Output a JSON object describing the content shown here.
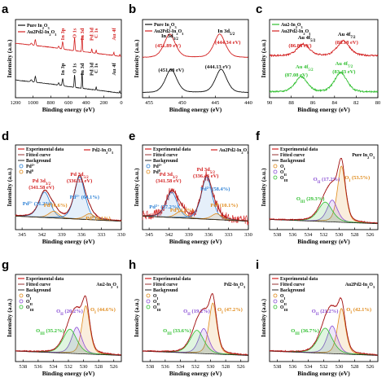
{
  "chart_data": [
    {
      "panel": "a",
      "type": "line",
      "xlabel": "Binding energy (eV)",
      "ylabel": "Intensity (a.u.)",
      "xlim": [
        1200,
        0
      ],
      "xticks": [
        1200,
        1000,
        800,
        600,
        400,
        200,
        0
      ],
      "legend": [
        "Pure In2O3",
        "Au2Pd2-In2O3"
      ],
      "legend_sub": [
        {
          "pre": "Pure In",
          "sub1": "2",
          "mid": "O",
          "sub2": "3"
        },
        {
          "pre": "Au2Pd2-In",
          "sub1": "2",
          "mid": "O",
          "sub2": "3"
        }
      ],
      "series": [
        {
          "name": "Au2Pd2-In2O3",
          "color": "#d32020",
          "offset": 0.52,
          "baseline": [
            [
              1200,
              0.42
            ],
            [
              1000,
              0.36
            ],
            [
              800,
              0.3
            ],
            [
              600,
              0.22
            ],
            [
              450,
              0.17
            ],
            [
              0,
              0.02
            ]
          ],
          "peaks": [
            [
              1020,
              0.06,
              8
            ],
            [
              975,
              0.18,
              6
            ],
            [
              710,
              0.07,
              6
            ],
            [
              665,
              0.22,
              6
            ],
            [
              530,
              0.38,
              5
            ],
            [
              445,
              0.5,
              4
            ],
            [
              335,
              0.12,
              4
            ],
            [
              285,
              0.1,
              4
            ],
            [
              85,
              0.1,
              4
            ],
            [
              18,
              0.06,
              3
            ]
          ]
        },
        {
          "name": "Pure In2O3",
          "color": "#111111",
          "offset": 0.05,
          "baseline": [
            [
              1200,
              0.42
            ],
            [
              1000,
              0.36
            ],
            [
              800,
              0.3
            ],
            [
              600,
              0.22
            ],
            [
              450,
              0.17
            ],
            [
              0,
              0.02
            ]
          ],
          "peaks": [
            [
              1020,
              0.06,
              8
            ],
            [
              975,
              0.18,
              6
            ],
            [
              710,
              0.07,
              6
            ],
            [
              665,
              0.22,
              6
            ],
            [
              530,
              0.38,
              5
            ],
            [
              445,
              0.5,
              4
            ],
            [
              285,
              0.1,
              4
            ],
            [
              18,
              0.06,
              3
            ]
          ]
        }
      ],
      "annotations": [
        {
          "text": "In 3p",
          "x": 665,
          "color": "#d32020"
        },
        {
          "text": "O 1s",
          "x": 530,
          "color": "#d32020"
        },
        {
          "text": "In 3d",
          "x": 445,
          "color": "#d32020"
        },
        {
          "text": "Pd 3d",
          "x": 335,
          "color": "#d32020"
        },
        {
          "text": "C 1s",
          "x": 285,
          "color": "#d32020"
        },
        {
          "text": "Au 4f",
          "x": 85,
          "color": "#d32020"
        },
        {
          "text": "In 3p",
          "x": 665,
          "color": "#111111"
        },
        {
          "text": "O 1s",
          "x": 530,
          "color": "#111111"
        },
        {
          "text": "In 3d",
          "x": 445,
          "color": "#111111"
        },
        {
          "text": "Pd 3d",
          "x": 335,
          "color": "#111111"
        },
        {
          "text": "C 1s",
          "x": 285,
          "color": "#111111"
        },
        {
          "text": "Au 4f",
          "x": 85,
          "color": "#111111"
        }
      ]
    },
    {
      "panel": "b",
      "type": "line",
      "xlabel": "Binding energy (eV)",
      "ylabel": "Intensity (a.u.)",
      "xlim": [
        456,
        440
      ],
      "xticks": [
        455,
        450,
        445,
        440
      ],
      "legend": [
        "Pure In2O3",
        "Au2Pd2-In2O3"
      ],
      "legend_sub": [
        {
          "pre": "Pure In",
          "sub1": "2",
          "mid": "O",
          "sub2": "3"
        },
        {
          "pre": "Au2Pd2-In",
          "sub1": "2",
          "mid": "O",
          "sub2": "3"
        }
      ],
      "series": [
        {
          "name": "Au2Pd2-In2O3",
          "color": "#d32020",
          "peaks": [
            [
              451.89,
              1.0
            ],
            [
              444.34,
              1.0
            ]
          ]
        },
        {
          "name": "Pure In2O3",
          "color": "#111111",
          "peaks": [
            [
              451.68,
              1.0
            ],
            [
              444.13,
              1.0
            ]
          ]
        }
      ],
      "peak_labels": [
        "In 3d3/2",
        "In 3d5/2"
      ],
      "annotations": [
        {
          "text": "(451.89 eV)",
          "x": 451.89,
          "color": "#d32020"
        },
        {
          "text": "(444.34 eV)",
          "x": 444.34,
          "color": "#d32020"
        },
        {
          "text": "(451.68 eV)",
          "x": 451.68,
          "color": "#111111"
        },
        {
          "text": "(444.13 eV)",
          "x": 444.13,
          "color": "#111111"
        }
      ]
    },
    {
      "panel": "c",
      "type": "line",
      "xlabel": "Binding energy (eV)",
      "ylabel": "Intensity (a.u.)",
      "xlim": [
        90,
        80
      ],
      "xticks": [
        90,
        88,
        86,
        84,
        82,
        80
      ],
      "legend": [
        "Au2-In2O3",
        "Au2Pd2-In2O3"
      ],
      "legend_sub": [
        {
          "pre": "Au2-In",
          "sub1": "2",
          "mid": "O",
          "sub2": "3"
        },
        {
          "pre": "Au2Pd2-In",
          "sub1": "2",
          "mid": "O",
          "sub2": "3"
        }
      ],
      "series": [
        {
          "name": "Au2Pd2-In2O3",
          "color": "#d32020",
          "peaks": [
            [
              86.88,
              0.35
            ],
            [
              83.18,
              0.45
            ]
          ]
        },
        {
          "name": "Au2-In2O3",
          "color": "#2fbf2f",
          "peaks": [
            [
              87.08,
              0.35
            ],
            [
              83.43,
              0.45
            ]
          ]
        }
      ],
      "peak_labels": [
        "Au 4f5/2",
        "Au 4f7/2"
      ],
      "annotations": [
        {
          "text": "(86.88 eV)",
          "x": 86.88,
          "color": "#d32020"
        },
        {
          "text": "(83.18 eV)",
          "x": 83.18,
          "color": "#d32020"
        },
        {
          "text": "(87.08 eV)",
          "x": 87.08,
          "color": "#2fbf2f"
        },
        {
          "text": "(83.43 eV)",
          "x": 83.43,
          "color": "#2fbf2f"
        }
      ]
    },
    {
      "panel": "d",
      "type": "line",
      "xlabel": "Binding energy (eV)",
      "ylabel": "Intensity (a.u.)",
      "xlim": [
        346,
        330
      ],
      "xticks": [
        345,
        342,
        339,
        336,
        333,
        330
      ],
      "sample_label": "Pd2-In2O3",
      "legend": [
        "Experimental data",
        "Fitted curve",
        "Background",
        "Pd2+",
        "Pd0"
      ],
      "annotations": [
        {
          "text": "Pd 3d3/2",
          "x": 341.58,
          "color": "#d32020"
        },
        {
          "text": "(341.58 eV)",
          "x": 341.58,
          "color": "#d32020"
        },
        {
          "text": "Pd 3d5/2",
          "x": 336.33,
          "color": "#d32020"
        },
        {
          "text": "(336.33 eV)",
          "x": 336.33,
          "color": "#d32020"
        },
        {
          "text": "Pd2+ (31.2%)",
          "x": 342.2,
          "color": "#2a7fd4"
        },
        {
          "text": "Pd0(6.6%)",
          "x": 340.2,
          "color": "#e08a1a"
        },
        {
          "text": "Pd2+ (64.1%)",
          "x": 336.3,
          "color": "#2a7fd4"
        },
        {
          "text": "Pd0 (3.1%)",
          "x": 334.5,
          "color": "#e08a1a"
        }
      ]
    },
    {
      "panel": "e",
      "type": "line",
      "xlabel": "Binding energy (eV)",
      "ylabel": "Intensity (a.u.)",
      "xlim": [
        346,
        330
      ],
      "xticks": [
        345,
        342,
        339,
        336,
        333,
        330
      ],
      "sample_label": "Au2Pd2-In2O3",
      "legend": [
        "Experimental data",
        "Fitted curve",
        "Background",
        "Pd2+",
        "Pd0"
      ],
      "annotations": [
        {
          "text": "Pd 3d3/2",
          "x": 341.58,
          "color": "#d32020"
        },
        {
          "text": "(341.58 eV)",
          "x": 341.58,
          "color": "#d32020"
        },
        {
          "text": "Pd 3d5/2",
          "x": 336.43,
          "color": "#d32020"
        },
        {
          "text": "(336.43 eV)",
          "x": 336.43,
          "color": "#d32020"
        },
        {
          "text": "Pd2+ (27.2%)",
          "x": 342.5,
          "color": "#2a7fd4"
        },
        {
          "text": "Pd0(4.3%)",
          "x": 340.3,
          "color": "#e08a1a"
        },
        {
          "text": "Pd2+ (58.4%)",
          "x": 336.0,
          "color": "#2a7fd4"
        },
        {
          "text": "Pd0 (10.1%)",
          "x": 334.4,
          "color": "#e08a1a"
        }
      ]
    },
    {
      "panel": "f",
      "type": "line",
      "xlabel": "Binding energy (eV)",
      "ylabel": "Intensity (a.u.)",
      "xlim": [
        539,
        525
      ],
      "xticks": [
        538,
        536,
        534,
        532,
        530,
        528,
        526
      ],
      "sample_label": "Pure In2O3",
      "legend": [
        "Experimental data",
        "Fitted curve",
        "Background",
        "OI",
        "OII",
        "OIII"
      ],
      "components": [
        {
          "name": "OI",
          "center": 529.7,
          "color": "#e08a1a"
        },
        {
          "name": "OII",
          "center": 530.9,
          "color": "#8a4fd4"
        },
        {
          "name": "OIII",
          "center": 531.9,
          "color": "#2fbf2f"
        }
      ],
      "annotations": [
        {
          "text": "OII (17.2%)",
          "x": 531.0,
          "color": "#8a4fd4"
        },
        {
          "text": "OI (53.5%)",
          "x": 528.5,
          "color": "#e08a1a"
        },
        {
          "text": "OIII (29.3%)",
          "x": 533.3,
          "color": "#2fbf2f"
        }
      ],
      "fractions": {
        "OI": 53.5,
        "OII": 17.2,
        "OIII": 29.3
      }
    },
    {
      "panel": "g",
      "type": "line",
      "xlabel": "Binding energy (eV)",
      "ylabel": "Intensity (a.u.)",
      "xlim": [
        539,
        525
      ],
      "xticks": [
        538,
        536,
        534,
        532,
        530,
        528,
        526
      ],
      "sample_label": "Au2-In2O3",
      "legend": [
        "Experimental data",
        "Fitted curve",
        "Background",
        "OI",
        "OII",
        "OIII"
      ],
      "components": [
        {
          "name": "OI",
          "center": 529.7,
          "color": "#e08a1a"
        },
        {
          "name": "OII",
          "center": 530.9,
          "color": "#8a4fd4"
        },
        {
          "name": "OIII",
          "center": 531.9,
          "color": "#2fbf2f"
        }
      ],
      "annotations": [
        {
          "text": "OII (20.2%)",
          "x": 531.2,
          "color": "#8a4fd4"
        },
        {
          "text": "OI (44.6%)",
          "x": 528.3,
          "color": "#e08a1a"
        },
        {
          "text": "OIII (35.2%)",
          "x": 534.0,
          "color": "#2fbf2f"
        }
      ],
      "fractions": {
        "OI": 44.6,
        "OII": 20.2,
        "OIII": 35.2
      }
    },
    {
      "panel": "h",
      "type": "line",
      "xlabel": "Binding energy (eV)",
      "ylabel": "Intensity (a.u.)",
      "xlim": [
        539,
        525
      ],
      "xticks": [
        538,
        536,
        534,
        532,
        530,
        528,
        526
      ],
      "sample_label": "Pd2-In2O3",
      "legend": [
        "Experimental data",
        "Fitted curve",
        "Background",
        "OI",
        "OII",
        "OIII"
      ],
      "components": [
        {
          "name": "OI",
          "center": 529.7,
          "color": "#e08a1a"
        },
        {
          "name": "OII",
          "center": 530.9,
          "color": "#8a4fd4"
        },
        {
          "name": "OIII",
          "center": 531.9,
          "color": "#2fbf2f"
        }
      ],
      "annotations": [
        {
          "text": "OII (19.2%)",
          "x": 531.2,
          "color": "#8a4fd4"
        },
        {
          "text": "OI (47.2%)",
          "x": 528.3,
          "color": "#e08a1a"
        },
        {
          "text": "OIII (33.6%)",
          "x": 534.0,
          "color": "#2fbf2f"
        }
      ],
      "fractions": {
        "OI": 47.2,
        "OII": 19.2,
        "OIII": 33.6
      }
    },
    {
      "panel": "i",
      "type": "line",
      "xlabel": "Binding energy (eV)",
      "ylabel": "Intensity (a.u.)",
      "xlim": [
        539,
        525
      ],
      "xticks": [
        538,
        536,
        534,
        532,
        530,
        528,
        526
      ],
      "sample_label": "Au2Pd2-In2O3",
      "legend": [
        "Experimental data",
        "Fitted curve",
        "Background",
        "OI",
        "OII",
        "OIII"
      ],
      "components": [
        {
          "name": "OI",
          "center": 529.7,
          "color": "#e08a1a"
        },
        {
          "name": "OII",
          "center": 530.9,
          "color": "#8a4fd4"
        },
        {
          "name": "OIII",
          "center": 531.9,
          "color": "#2fbf2f"
        }
      ],
      "annotations": [
        {
          "text": "OII (21.2%)",
          "x": 531.2,
          "color": "#8a4fd4"
        },
        {
          "text": "OI (42.1%)",
          "x": 528.3,
          "color": "#e08a1a"
        },
        {
          "text": "OIII (36.7%)",
          "x": 534.0,
          "color": "#2fbf2f"
        }
      ],
      "fractions": {
        "OI": 42.1,
        "OII": 21.2,
        "OIII": 36.7
      }
    }
  ]
}
